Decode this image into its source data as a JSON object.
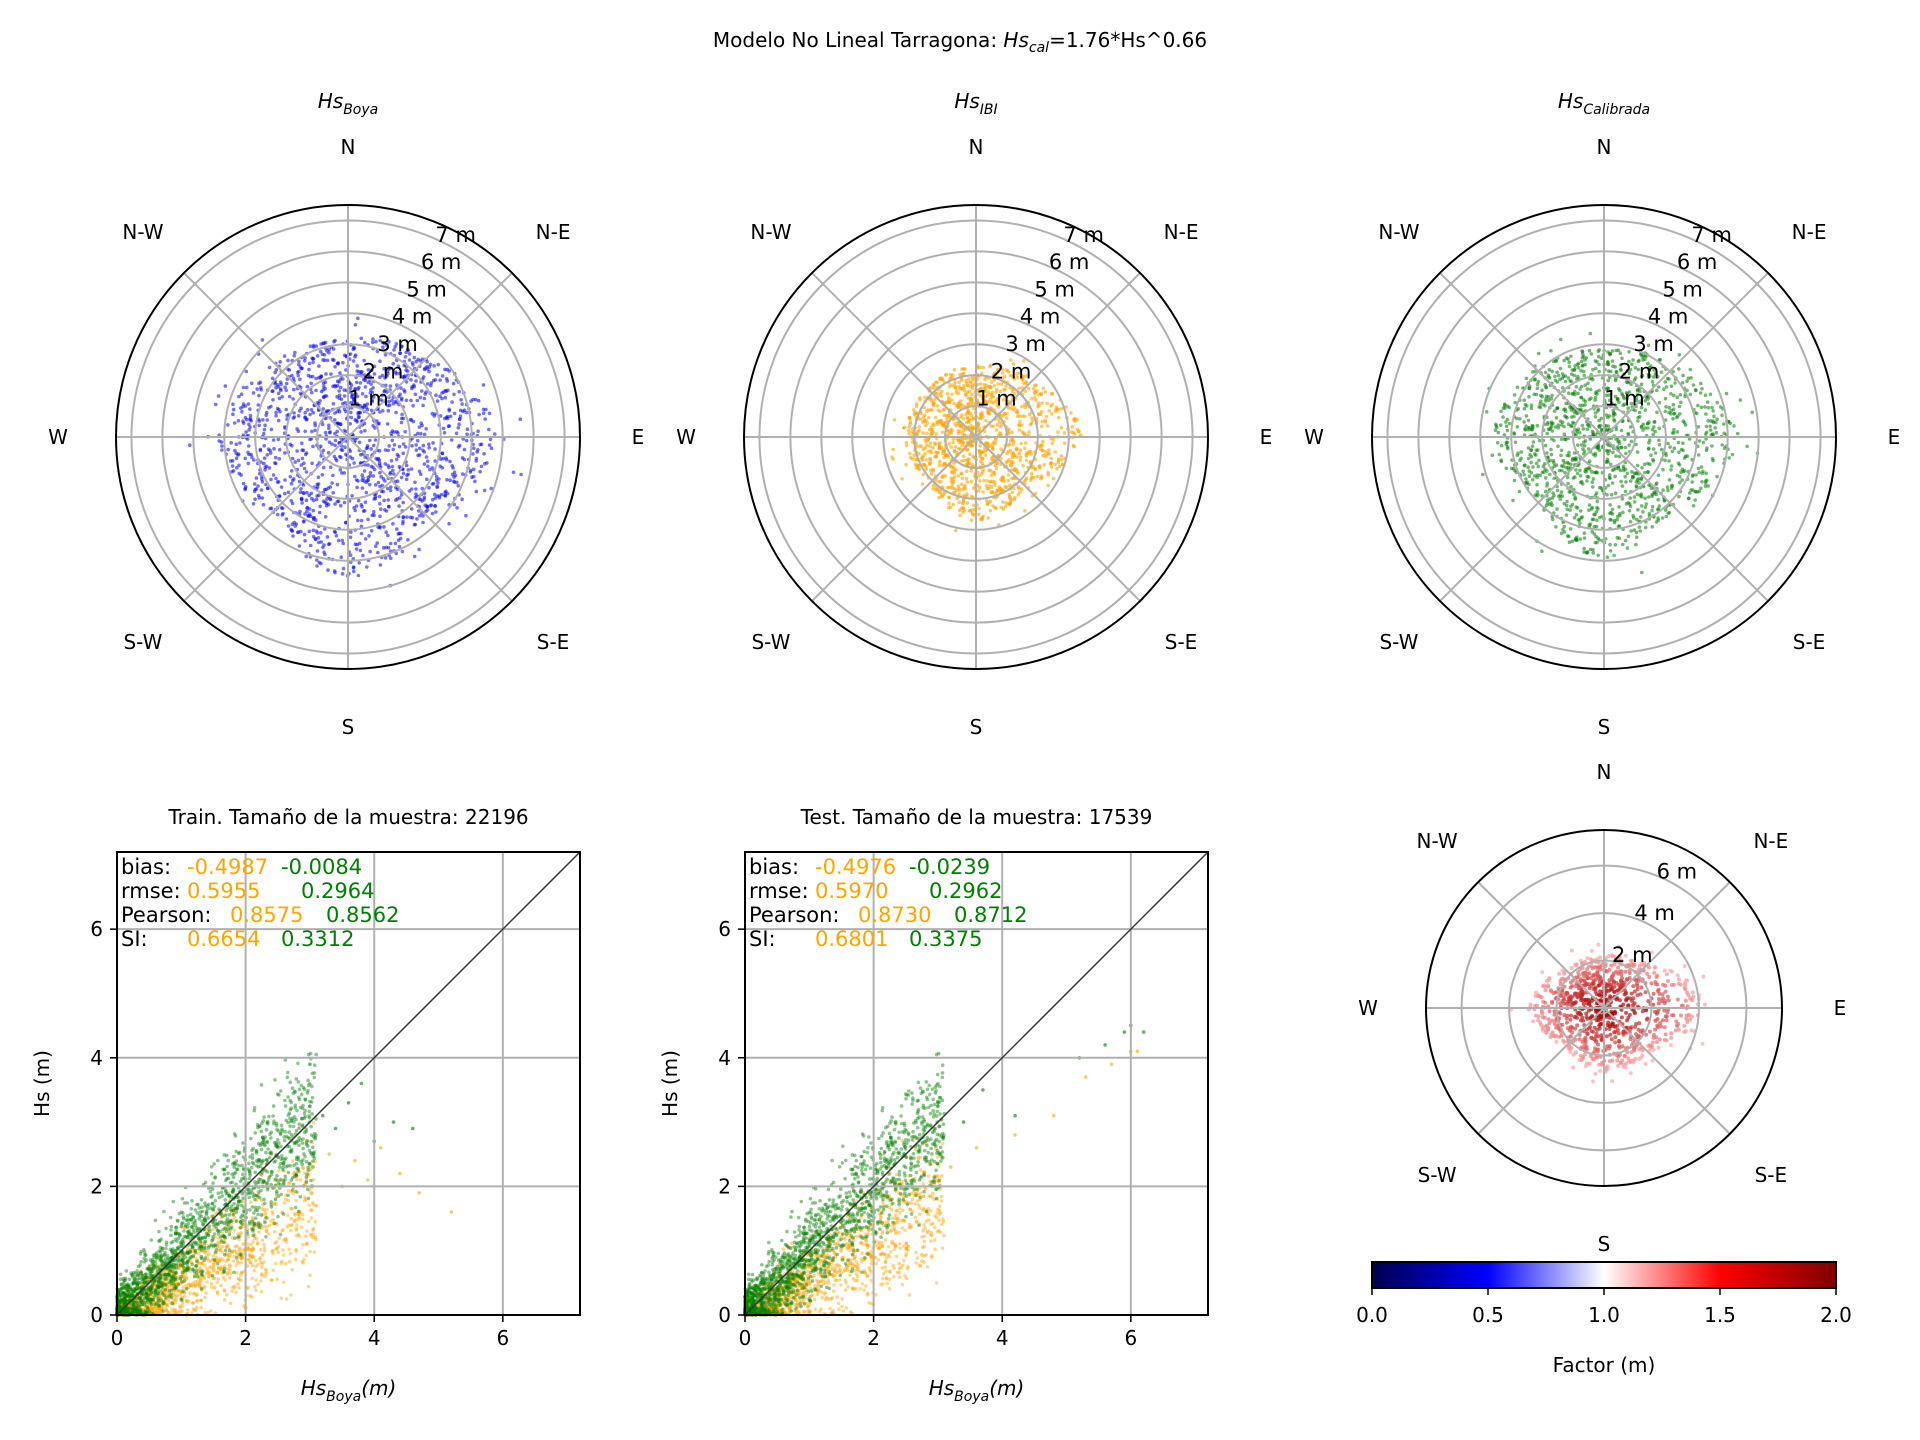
{
  "figure": {
    "title_prefix": "Modelo No Lineal Tarragona: ",
    "title_symbol": "Hs",
    "title_sub": "cal",
    "title_suffix": "=1.76*Hs^0.66"
  },
  "compass": {
    "n": "N",
    "ne": "N-E",
    "e": "E",
    "se": "S-E",
    "s": "S",
    "sw": "S-W",
    "w": "W",
    "nw": "N-W"
  },
  "colors": {
    "boya": "#0000ff",
    "ibi": "#ffa500",
    "calibrada": "#008000",
    "grid": "#b0b0b0",
    "identity_line": "#333333"
  },
  "chart_data": [
    {
      "type": "scatter",
      "subtype": "polar",
      "title_symbol": "Hs",
      "title_sub": "Boya",
      "series_color": "#0000ff",
      "r_ticks": [
        "1 m",
        "2 m",
        "3 m",
        "4 m",
        "5 m",
        "6 m",
        "7 m"
      ],
      "r_max": 7.5,
      "extent_by_direction": {
        "N": 3.1,
        "NE": 3.6,
        "E": 5.0,
        "SE": 3.6,
        "S": 4.6,
        "SW": 3.5,
        "W": 4.2,
        "NW": 3.4
      }
    },
    {
      "type": "scatter",
      "subtype": "polar",
      "title_symbol": "Hs",
      "title_sub": "IBI",
      "series_color": "#ffa500",
      "r_ticks": [
        "1 m",
        "2 m",
        "3 m",
        "4 m",
        "5 m",
        "6 m",
        "7 m"
      ],
      "r_max": 7.5,
      "extent_by_direction": {
        "N": 2.3,
        "NE": 2.6,
        "E": 3.5,
        "SE": 2.2,
        "S": 2.8,
        "SW": 2.1,
        "W": 2.4,
        "NW": 2.2
      }
    },
    {
      "type": "scatter",
      "subtype": "polar",
      "title_symbol": "Hs",
      "title_sub": "Calibrada",
      "series_color": "#008000",
      "r_ticks": [
        "1 m",
        "2 m",
        "3 m",
        "4 m",
        "5 m",
        "6 m",
        "7 m"
      ],
      "r_max": 7.5,
      "extent_by_direction": {
        "N": 2.8,
        "NE": 3.2,
        "E": 4.4,
        "SE": 3.2,
        "S": 4.0,
        "SW": 3.0,
        "W": 3.6,
        "NW": 3.1
      }
    },
    {
      "type": "scatter",
      "title": "Train. Tamaño de la muestra: 22196",
      "xlabel_symbol": "Hs",
      "xlabel_sub": "Boya",
      "xlabel_unit": "(m)",
      "ylabel": "Hs (m)",
      "xlim": [
        0,
        7.2
      ],
      "ylim": [
        0,
        7.2
      ],
      "xticks": [
        0,
        2,
        4,
        6
      ],
      "yticks": [
        0,
        2,
        4,
        6
      ],
      "grid": true,
      "identity_line": true,
      "series": [
        {
          "name": "IBI",
          "color": "#ffa500",
          "slope": 0.6,
          "intercept": -0.1,
          "points_x": [
            3.1,
            3.3,
            3.5,
            3.7,
            3.9,
            4.1,
            4.4,
            4.7,
            5.2
          ],
          "points_y": [
            1.7,
            2.5,
            2.0,
            2.4,
            2.1,
            2.6,
            2.2,
            1.9,
            1.6
          ]
        },
        {
          "name": "Calibrada",
          "color": "#008000",
          "slope": 1.0,
          "intercept": 0.0,
          "points_x": [
            3.0,
            3.2,
            3.4,
            3.6,
            3.8,
            4.0,
            4.3,
            4.6
          ],
          "points_y": [
            3.9,
            3.1,
            2.9,
            3.3,
            3.6,
            2.7,
            3.0,
            2.9
          ]
        }
      ],
      "stats": {
        "labels": {
          "bias": "bias:",
          "rmse": "rmse:",
          "pearson": "Pearson:",
          "si": "SI:"
        },
        "ibi": {
          "bias": "-0.4987",
          "rmse": "0.5955",
          "pearson": "0.8575",
          "si": "0.6654"
        },
        "calibrada": {
          "bias": "-0.0084",
          "rmse": "0.2964",
          "pearson": "0.8562",
          "si": "0.3312"
        }
      }
    },
    {
      "type": "scatter",
      "title": "Test. Tamaño de la muestra: 17539",
      "xlabel_symbol": "Hs",
      "xlabel_sub": "Boya",
      "xlabel_unit": "(m)",
      "ylabel": "Hs (m)",
      "xlim": [
        0,
        7.2
      ],
      "ylim": [
        0,
        7.2
      ],
      "xticks": [
        0,
        2,
        4,
        6
      ],
      "yticks": [
        0,
        2,
        4,
        6
      ],
      "grid": true,
      "identity_line": true,
      "series": [
        {
          "name": "IBI",
          "color": "#ffa500",
          "slope": 0.62,
          "intercept": -0.1,
          "points_x": [
            3.2,
            3.6,
            4.2,
            4.8,
            5.3,
            5.7,
            6.0,
            6.1
          ],
          "points_y": [
            2.3,
            2.6,
            2.8,
            3.1,
            3.7,
            3.9,
            4.1,
            4.1
          ]
        },
        {
          "name": "Calibrada",
          "color": "#008000",
          "slope": 1.0,
          "intercept": 0.0,
          "points_x": [
            3.0,
            3.4,
            3.7,
            4.2,
            5.2,
            5.6,
            5.9,
            6.0,
            6.2
          ],
          "points_y": [
            3.3,
            3.0,
            3.5,
            3.1,
            4.0,
            4.2,
            4.4,
            4.5,
            4.4
          ]
        }
      ],
      "stats": {
        "labels": {
          "bias": "bias:",
          "rmse": "rmse:",
          "pearson": "Pearson:",
          "si": "SI:"
        },
        "ibi": {
          "bias": "-0.4976",
          "rmse": "0.5970",
          "pearson": "0.8730",
          "si": "0.6801"
        },
        "calibrada": {
          "bias": "-0.0239",
          "rmse": "0.2962",
          "pearson": "0.8712",
          "si": "0.3375"
        }
      }
    },
    {
      "type": "scatter",
      "subtype": "polar",
      "r_ticks": [
        "2 m",
        "4 m",
        "6 m"
      ],
      "r_max": 7.5,
      "series_color": "#e00000",
      "extent_by_direction": {
        "N": 2.2,
        "NE": 2.6,
        "E": 4.4,
        "SE": 2.6,
        "S": 2.7,
        "SW": 2.3,
        "W": 3.3,
        "NW": 2.3
      },
      "colorbar": {
        "label": "Factor (m)",
        "range": [
          0.0,
          2.0
        ],
        "ticks": [
          "0.0",
          "0.5",
          "1.0",
          "1.5",
          "2.0"
        ],
        "colormap": [
          "#00004c",
          "#0000ff",
          "#ffffff",
          "#ff0000",
          "#800000"
        ]
      }
    }
  ]
}
